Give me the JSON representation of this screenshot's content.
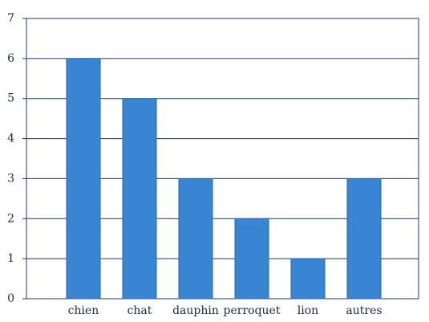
{
  "chart_data": {
    "type": "bar",
    "categories": [
      "chien",
      "chat",
      "dauphin",
      "perroquet",
      "lion",
      "autres"
    ],
    "values": [
      6,
      5,
      3,
      2,
      1,
      3
    ],
    "color": "#3a84d4",
    "ylim": [
      0,
      7
    ],
    "yticks": [
      0,
      1,
      2,
      3,
      4,
      5,
      6,
      7
    ],
    "grid": true
  }
}
